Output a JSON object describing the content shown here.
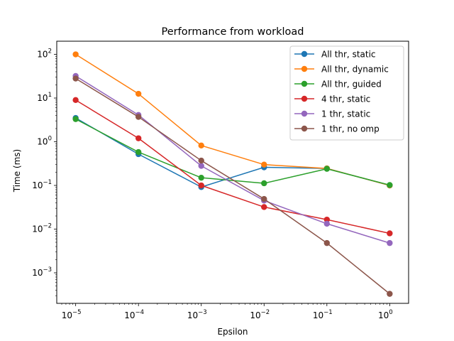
{
  "chart_data": {
    "type": "line",
    "title": "Performance from workload",
    "xlabel": "Epsilon",
    "ylabel": "Time (ms)",
    "xscale": "log",
    "yscale": "log",
    "xlim": [
      5e-06,
      2
    ],
    "ylim": [
      0.0002,
      200
    ],
    "grid": false,
    "legend_position": "top-right",
    "x": [
      1e-05,
      0.0001,
      0.001,
      0.01,
      0.1,
      1
    ],
    "x_tick_labels": [
      {
        "value": 1e-05,
        "base": "10",
        "exp": "−5"
      },
      {
        "value": 0.0001,
        "base": "10",
        "exp": "−4"
      },
      {
        "value": 0.001,
        "base": "10",
        "exp": "−3"
      },
      {
        "value": 0.01,
        "base": "10",
        "exp": "−2"
      },
      {
        "value": 0.1,
        "base": "10",
        "exp": "−1"
      },
      {
        "value": 1,
        "base": "10",
        "exp": "0"
      }
    ],
    "y_tick_labels": [
      {
        "value": 0.001,
        "base": "10",
        "exp": "−3"
      },
      {
        "value": 0.01,
        "base": "10",
        "exp": "−2"
      },
      {
        "value": 0.1,
        "base": "10",
        "exp": "−1"
      },
      {
        "value": 1,
        "base": "10",
        "exp": "0"
      },
      {
        "value": 10,
        "base": "10",
        "exp": "1"
      },
      {
        "value": 100,
        "base": "10",
        "exp": "2"
      }
    ],
    "series": [
      {
        "name": "All thr, static",
        "color": "#1f77b4",
        "values": [
          3.5,
          0.52,
          0.092,
          0.26,
          0.245,
          0.1
        ]
      },
      {
        "name": "All thr, dynamic",
        "color": "#ff7f0e",
        "values": [
          100,
          12.5,
          0.82,
          0.3,
          0.245,
          0.1
        ]
      },
      {
        "name": "All thr, guided",
        "color": "#2ca02c",
        "values": [
          3.3,
          0.58,
          0.15,
          0.112,
          0.24,
          0.102
        ]
      },
      {
        "name": "4 thr, static",
        "color": "#d62728",
        "values": [
          9.0,
          1.2,
          0.1,
          0.032,
          0.0165,
          0.008
        ]
      },
      {
        "name": "1 thr, static",
        "color": "#9467bd",
        "values": [
          32,
          4.1,
          0.28,
          0.045,
          0.0133,
          0.0048
        ]
      },
      {
        "name": "1 thr, no omp",
        "color": "#8c564b",
        "values": [
          28,
          3.7,
          0.37,
          0.049,
          0.0048,
          0.00033
        ]
      }
    ]
  }
}
